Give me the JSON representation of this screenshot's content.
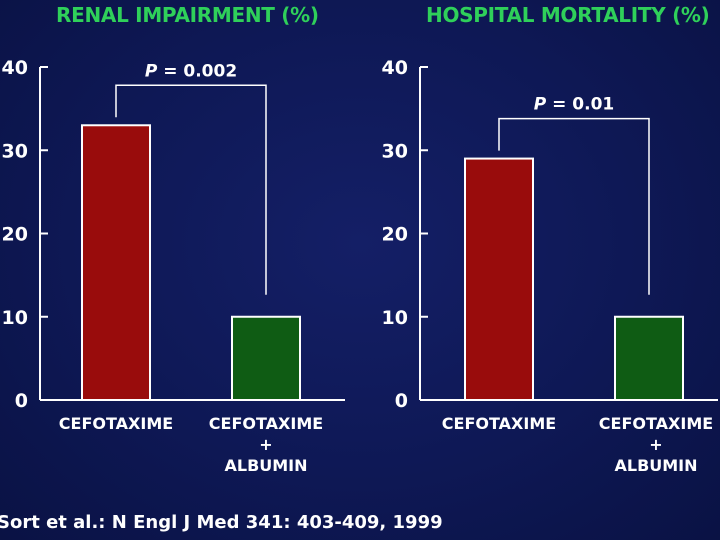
{
  "citation": "Sort et al.: N Engl J Med 341: 403-409, 1999",
  "colors": {
    "title": "#2fd05a",
    "bar_cefotaxime": "#990c0c",
    "bar_cefotaxime_albumin": "#0f5c14",
    "background": "#0f1858",
    "text": "#ffffff"
  },
  "chart_data": [
    {
      "type": "bar",
      "title": "RENAL IMPAIRMENT (%)",
      "categories": [
        [
          "CEFOTAXIME"
        ],
        [
          "CEFOTAXIME",
          "+",
          "ALBUMIN"
        ]
      ],
      "values": [
        33,
        10
      ],
      "ylim": [
        0,
        40
      ],
      "yticks": [
        "0",
        "10",
        "20",
        "30",
        "40"
      ],
      "annotation": {
        "label": "P",
        "text": " = 0.002"
      },
      "grid": false,
      "legend": "none"
    },
    {
      "type": "bar",
      "title": "HOSPITAL MORTALITY (%)",
      "categories": [
        [
          "CEFOTAXIME"
        ],
        [
          "CEFOTAXIME",
          "+",
          "ALBUMIN"
        ]
      ],
      "values": [
        29,
        10
      ],
      "ylim": [
        0,
        40
      ],
      "yticks": [
        "0",
        "10",
        "20",
        "30",
        "40"
      ],
      "annotation": {
        "label": "P",
        "text": " = 0.01"
      },
      "grid": false,
      "legend": "none"
    }
  ]
}
